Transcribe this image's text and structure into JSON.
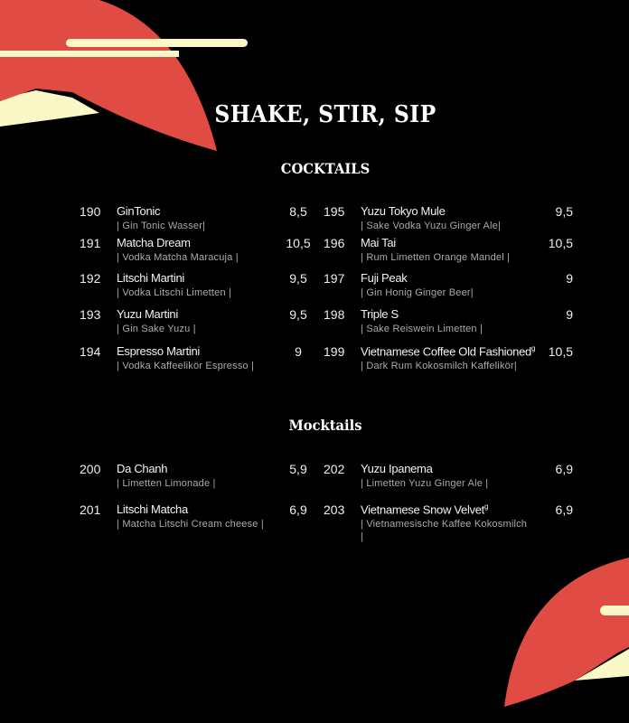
{
  "title": "SHAKE, STIR, SIP",
  "colors": {
    "background": "#000000",
    "accent_red": "#e04b44",
    "accent_cream": "#fbf8c8"
  },
  "cocktails": {
    "heading": "COCKTAILS",
    "left": [
      {
        "num": "190",
        "name": "GinTonic",
        "desc": "| Gin Tonic Wasser|",
        "price": "8,5"
      },
      {
        "num": "191",
        "name": "Matcha Dream",
        "desc": "| Vodka Matcha Maracuja |",
        "price": "10,5"
      },
      {
        "num": "192",
        "name": "Litschi Martini",
        "desc": "| Vodka Litschi Limetten |",
        "price": "9,5"
      },
      {
        "num": "193",
        "name": "Yuzu Martini",
        "desc": "| Gin Sake Yuzu |",
        "price": "9,5"
      },
      {
        "num": "194",
        "name": "Espresso Martini",
        "desc": "| Vodka Kaffeelikör Espresso |",
        "price": "9"
      }
    ],
    "right": [
      {
        "num": "195",
        "name": "Yuzu Tokyo Mule",
        "desc": "| Sake Vodka Yuzu Ginger Ale|",
        "price": "9,5"
      },
      {
        "num": "196",
        "name": "Mai Tai",
        "desc": "| Rum Limetten Orange Mandel |",
        "price": "10,5"
      },
      {
        "num": "197",
        "name": "Fuji Peak",
        "desc": "| Gin Honig Ginger Beer|",
        "price": "9"
      },
      {
        "num": "198",
        "name": "Triple S",
        "desc": "| Sake Reiswein Limetten |",
        "price": "9"
      },
      {
        "num": "199",
        "name": "Vietnamese Coffee Old Fashioned",
        "sup": "g",
        "desc": "| Dark Rum Kokosmilch Kaffelikör|",
        "price": "10,5"
      }
    ]
  },
  "mocktails": {
    "heading": "Mocktails",
    "left": [
      {
        "num": "200",
        "name": "Da Chanh",
        "desc": "| Limetten Limonade |",
        "price": "5,9"
      },
      {
        "num": "201",
        "name": "Litschi Matcha",
        "desc": "| Matcha Litschi Cream cheese |",
        "price": "6,9"
      }
    ],
    "right": [
      {
        "num": "202",
        "name": "Yuzu Ipanema",
        "desc": "| Limetten Yuzu Ginger Ale |",
        "price": "6,9"
      },
      {
        "num": "203",
        "name": "Vietnamese Snow Velvet",
        "sup": "g",
        "desc": "| Vietnamesische Kaffee Kokosmilch |",
        "price": "6,9"
      }
    ]
  }
}
